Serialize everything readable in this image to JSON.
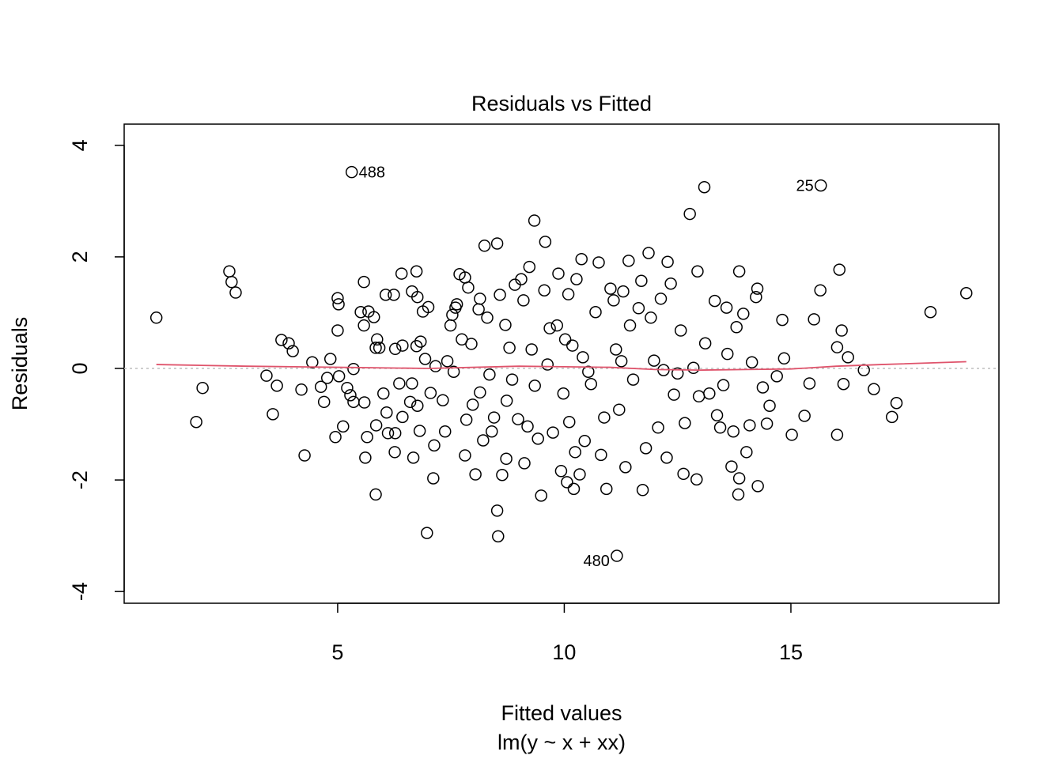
{
  "chart_data": {
    "type": "scatter",
    "title": "Residuals vs Fitted",
    "x_label": "Fitted values",
    "subtitle": "lm(y ~ x + xx)",
    "y_label": "Residuals",
    "xlim": [
      0.29,
      19.59
    ],
    "ylim": [
      -4.21,
      4.38
    ],
    "xticks": [
      5,
      10,
      15
    ],
    "yticks": [
      -4,
      -2,
      0,
      2,
      4
    ],
    "point_color": "#000000",
    "x": [
      1.0,
      1.88,
      2.02,
      2.61,
      2.66,
      2.75,
      3.43,
      3.57,
      3.66,
      3.76,
      3.92,
      4.01,
      4.2,
      4.27,
      4.44,
      4.63,
      4.7,
      4.77,
      4.84,
      4.95,
      5.0,
      5.02,
      5.0,
      5.03,
      5.12,
      5.21,
      5.28,
      5.35,
      5.35,
      5.51,
      5.58,
      5.58,
      5.59,
      5.61,
      5.65,
      5.68,
      5.8,
      5.84,
      5.84,
      5.87,
      5.85,
      5.92,
      6.01,
      6.06,
      6.08,
      6.11,
      6.24,
      6.26,
      6.27,
      6.27,
      6.36,
      6.41,
      6.43,
      6.43,
      6.6,
      6.64,
      6.64,
      6.67,
      6.74,
      6.76,
      6.74,
      6.76,
      6.81,
      6.83,
      6.88,
      6.93,
      6.97,
      7.0,
      7.05,
      7.11,
      7.13,
      7.16,
      7.32,
      7.37,
      7.42,
      7.49,
      7.53,
      7.56,
      7.6,
      7.63,
      7.69,
      7.74,
      7.81,
      7.81,
      7.84,
      7.88,
      7.95,
      7.98,
      8.04,
      8.11,
      8.14,
      8.14,
      8.21,
      8.24,
      8.3,
      8.35,
      8.4,
      8.45,
      8.52,
      8.52,
      8.54,
      8.58,
      8.63,
      8.7,
      8.72,
      8.73,
      8.79,
      8.85,
      8.91,
      8.98,
      9.05,
      9.1,
      9.12,
      9.19,
      9.23,
      9.28,
      9.34,
      9.35,
      9.42,
      9.49,
      9.56,
      9.58,
      9.63,
      9.68,
      9.75,
      9.84,
      9.87,
      9.93,
      9.98,
      10.02,
      10.06,
      10.09,
      10.11,
      10.18,
      10.21,
      10.24,
      10.27,
      10.34,
      10.38,
      10.41,
      10.45,
      10.53,
      10.59,
      10.69,
      10.76,
      10.81,
      10.88,
      10.93,
      11.02,
      11.09,
      11.14,
      11.21,
      11.26,
      11.3,
      11.35,
      11.42,
      11.45,
      11.52,
      11.64,
      11.7,
      11.73,
      11.8,
      11.86,
      11.91,
      11.98,
      12.07,
      12.13,
      12.19,
      12.26,
      12.28,
      12.35,
      12.42,
      12.5,
      12.57,
      12.63,
      12.66,
      12.77,
      12.85,
      12.92,
      12.94,
      12.97,
      13.09,
      13.11,
      13.2,
      13.32,
      13.37,
      13.44,
      13.51,
      13.58,
      13.6,
      13.69,
      13.73,
      13.8,
      13.86,
      13.86,
      13.84,
      13.95,
      14.02,
      14.09,
      14.14,
      14.23,
      14.26,
      14.27,
      14.38,
      14.47,
      14.53,
      14.69,
      14.81,
      14.85,
      15.02,
      15.3,
      15.41,
      15.51,
      15.65,
      16.02,
      16.02,
      16.07,
      16.12,
      16.16,
      16.26,
      16.61,
      16.83,
      17.23,
      17.33,
      18.08,
      18.87
    ],
    "values": [
      0.91,
      -0.96,
      -0.35,
      1.74,
      1.55,
      1.36,
      -0.13,
      -0.82,
      -0.31,
      0.51,
      0.45,
      0.31,
      -0.38,
      -1.56,
      0.11,
      -0.33,
      -0.6,
      -0.17,
      0.17,
      -1.23,
      1.26,
      1.15,
      0.68,
      -0.14,
      -1.04,
      -0.35,
      -0.48,
      -0.01,
      -0.6,
      1.01,
      1.55,
      0.77,
      -0.61,
      -1.6,
      -1.23,
      1.02,
      0.92,
      0.37,
      -2.26,
      0.52,
      -1.02,
      0.37,
      -0.45,
      1.32,
      -0.79,
      -1.16,
      1.32,
      -1.5,
      0.35,
      -1.16,
      -0.27,
      1.7,
      -0.87,
      0.41,
      -0.6,
      1.38,
      -0.27,
      -1.6,
      1.74,
      1.28,
      0.4,
      -0.67,
      -1.12,
      0.48,
      1.02,
      0.17,
      -2.95,
      1.1,
      -0.44,
      -1.97,
      -1.38,
      0.04,
      -0.57,
      -1.13,
      0.13,
      0.77,
      0.96,
      -0.06,
      1.09,
      1.15,
      1.69,
      0.52,
      -1.56,
      1.63,
      -0.92,
      1.45,
      0.44,
      -0.65,
      -1.9,
      1.06,
      1.25,
      -0.43,
      -1.29,
      2.2,
      0.91,
      -0.11,
      -1.13,
      -0.88,
      2.24,
      -2.55,
      -3.01,
      1.32,
      -1.91,
      0.78,
      -1.62,
      -0.58,
      0.37,
      -0.2,
      1.5,
      -0.91,
      1.6,
      1.22,
      -1.7,
      -1.04,
      1.82,
      0.34,
      2.65,
      -0.31,
      -1.26,
      -2.28,
      1.4,
      2.27,
      0.07,
      0.72,
      -1.15,
      0.77,
      1.7,
      -1.84,
      -0.45,
      0.52,
      -2.04,
      1.33,
      -0.96,
      0.41,
      -2.16,
      -1.5,
      1.6,
      -1.9,
      1.96,
      0.2,
      -1.3,
      -0.06,
      -0.28,
      1.01,
      1.9,
      -1.55,
      -0.88,
      -2.16,
      1.43,
      1.22,
      0.34,
      -0.74,
      0.13,
      1.38,
      -1.77,
      1.93,
      0.77,
      -0.2,
      1.08,
      1.57,
      -2.18,
      -1.43,
      2.07,
      0.91,
      0.14,
      -1.06,
      1.25,
      -0.03,
      -1.6,
      1.91,
      1.52,
      -0.47,
      -0.09,
      0.68,
      -1.89,
      -0.98,
      2.77,
      0.01,
      -1.99,
      1.74,
      -0.5,
      3.25,
      0.45,
      -0.45,
      1.21,
      -0.84,
      -1.06,
      -0.3,
      1.09,
      0.26,
      -1.76,
      -1.13,
      0.74,
      1.74,
      -1.97,
      -2.26,
      0.98,
      -1.5,
      -1.02,
      0.11,
      1.28,
      1.43,
      -2.11,
      -0.34,
      -0.99,
      -0.67,
      -0.14,
      0.87,
      0.18,
      -1.19,
      -0.85,
      -0.27,
      0.88,
      1.4,
      0.38,
      -1.19,
      1.77,
      0.68,
      -0.28,
      0.2,
      -0.03,
      -0.37,
      -0.87,
      -0.62,
      1.01,
      1.35
    ],
    "labeled_points": {
      "x": [
        5.31,
        15.66,
        11.16
      ],
      "values": [
        3.52,
        3.28,
        -3.36
      ],
      "labels": [
        "488",
        "25",
        "480"
      ]
    },
    "smooth": {
      "color": "#DF536B",
      "x": [
        1.0,
        3,
        5,
        7,
        9,
        10,
        11,
        12,
        13,
        14,
        15,
        16,
        17,
        18.87
      ],
      "values": [
        0.07,
        0.04,
        0.02,
        0.0,
        0.04,
        0.03,
        0.02,
        -0.02,
        -0.03,
        -0.02,
        -0.01,
        0.04,
        0.07,
        0.12
      ]
    },
    "reference_line": 0,
    "reference_color": "#bebebe"
  }
}
